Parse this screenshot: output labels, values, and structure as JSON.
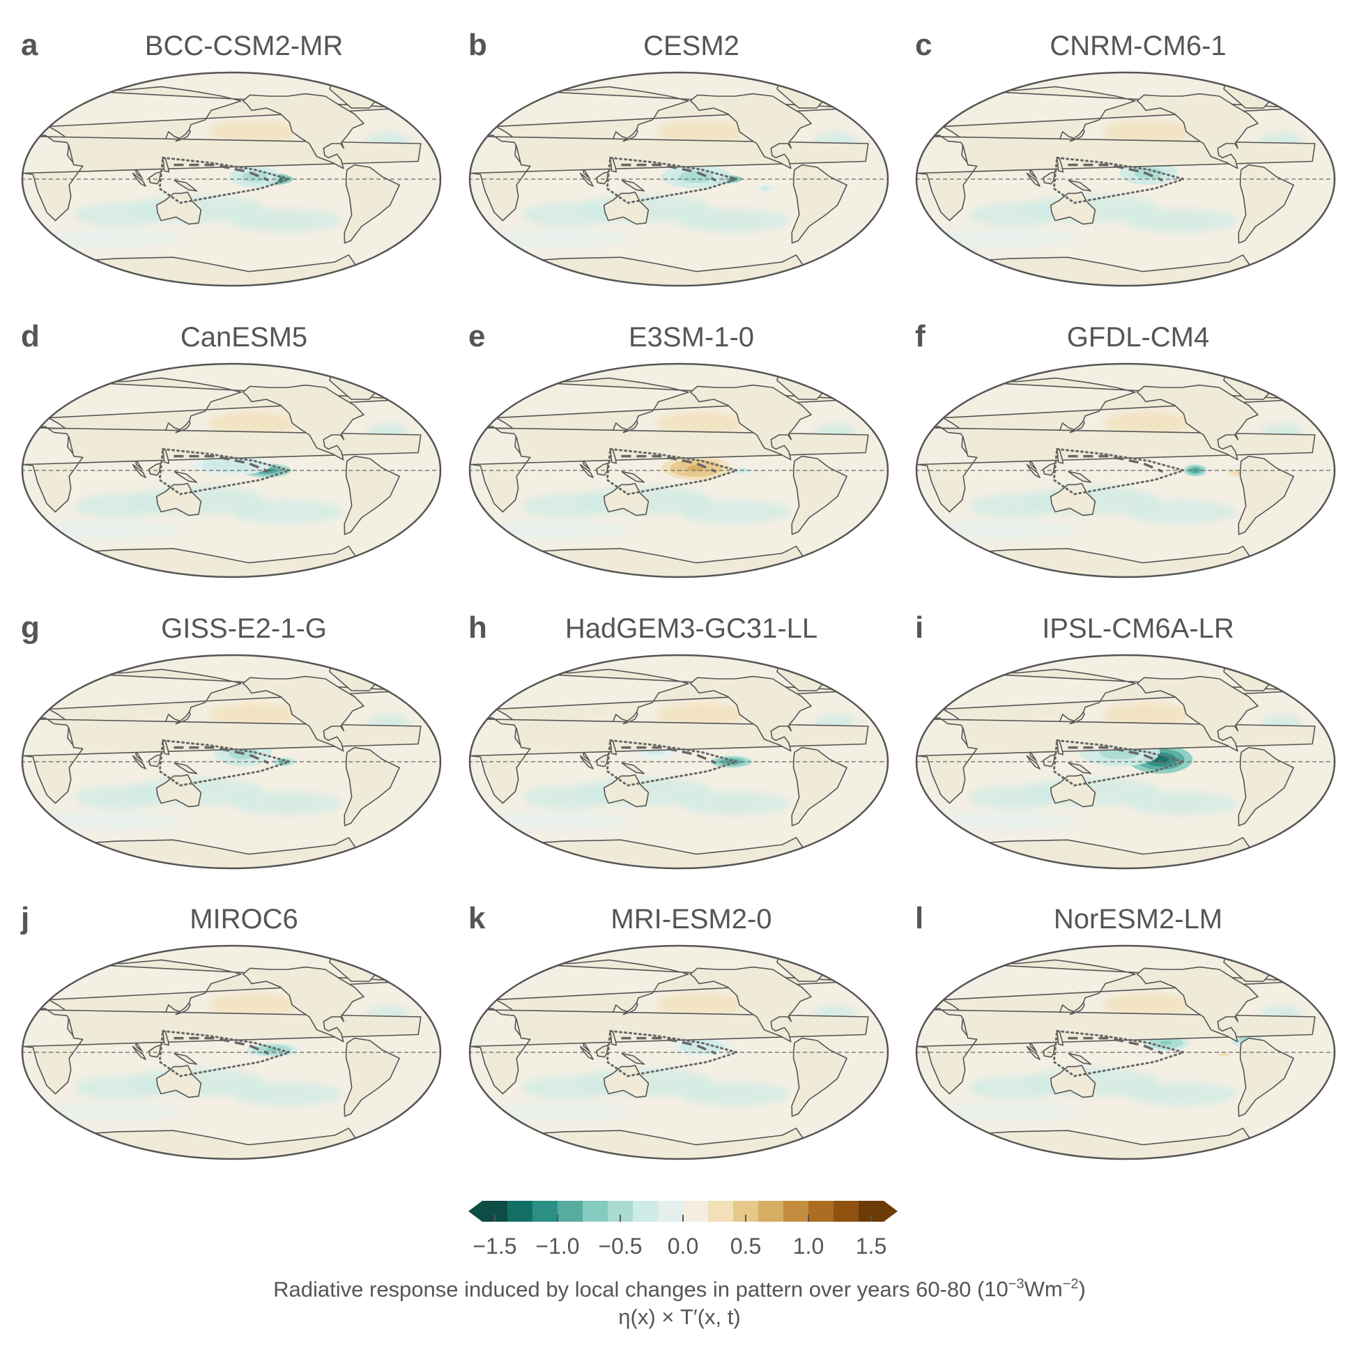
{
  "panels": [
    {
      "letter": "a",
      "title": "BCC-CSM2-MR",
      "anomaly": [
        {
          "lon": 215,
          "lat": 0,
          "v": -1.5,
          "rx": 18,
          "ry": 5
        },
        {
          "lon": 200,
          "lat": 2,
          "v": -0.6,
          "rx": 22,
          "ry": 9
        }
      ],
      "field": "weak"
    },
    {
      "letter": "b",
      "title": "CESM2",
      "anomaly": [
        {
          "lon": 215,
          "lat": 0,
          "v": -1.6,
          "rx": 20,
          "ry": 4
        },
        {
          "lon": 195,
          "lat": 2,
          "v": -0.5,
          "rx": 30,
          "ry": 10
        },
        {
          "lon": 255,
          "lat": -8,
          "v": -0.3,
          "rx": 8,
          "ry": 4
        }
      ],
      "field": "weak"
    },
    {
      "letter": "c",
      "title": "CNRM-CM6-1",
      "anomaly": [
        {
          "lon": 200,
          "lat": 5,
          "v": -0.5,
          "rx": 25,
          "ry": 10
        }
      ],
      "field": "weak"
    },
    {
      "letter": "d",
      "title": "CanESM5",
      "anomaly": [
        {
          "lon": 210,
          "lat": 0,
          "v": -1.2,
          "rx": 22,
          "ry": 6
        },
        {
          "lon": 180,
          "lat": 5,
          "v": -0.4,
          "rx": 35,
          "ry": 9
        }
      ],
      "field": "weak"
    },
    {
      "letter": "e",
      "title": "E3SM-1-0",
      "anomaly": [
        {
          "lon": 195,
          "lat": 2,
          "v": 0.7,
          "rx": 30,
          "ry": 10
        },
        {
          "lon": 235,
          "lat": 0,
          "v": -0.4,
          "rx": 8,
          "ry": 3
        }
      ],
      "field": "weak"
    },
    {
      "letter": "f",
      "title": "GFDL-CM4",
      "anomaly": [
        {
          "lon": 240,
          "lat": 0,
          "v": -1.0,
          "rx": 10,
          "ry": 5
        },
        {
          "lon": 280,
          "lat": -2,
          "v": 0.4,
          "rx": 16,
          "ry": 4
        }
      ],
      "field": "weak"
    },
    {
      "letter": "g",
      "title": "GISS-E2-1-G",
      "anomaly": [
        {
          "lon": 190,
          "lat": 8,
          "v": -0.6,
          "rx": 25,
          "ry": 12
        },
        {
          "lon": 225,
          "lat": 0,
          "v": -0.8,
          "rx": 10,
          "ry": 4
        }
      ],
      "field": "weak"
    },
    {
      "letter": "h",
      "title": "HadGEM3-GC31-LL",
      "anomaly": [
        {
          "lon": 225,
          "lat": 0,
          "v": -1.0,
          "rx": 18,
          "ry": 5
        },
        {
          "lon": 160,
          "lat": 10,
          "v": -0.3,
          "rx": 20,
          "ry": 8
        }
      ],
      "field": "weak"
    },
    {
      "letter": "i",
      "title": "IPSL-CM6A-LR",
      "anomaly": [
        {
          "lon": 210,
          "lat": 2,
          "v": -1.3,
          "rx": 28,
          "ry": 12
        },
        {
          "lon": 175,
          "lat": 8,
          "v": -0.5,
          "rx": 35,
          "ry": 12
        }
      ],
      "field": "weak"
    },
    {
      "letter": "j",
      "title": "MIROC6",
      "anomaly": [
        {
          "lon": 215,
          "lat": 2,
          "v": -0.7,
          "rx": 22,
          "ry": 6
        }
      ],
      "field": "weak"
    },
    {
      "letter": "k",
      "title": "MRI-ESM2-0",
      "anomaly": [
        {
          "lon": 200,
          "lat": 5,
          "v": -0.4,
          "rx": 25,
          "ry": 8
        }
      ],
      "field": "weak"
    },
    {
      "letter": "l",
      "title": "NorESM2-LM",
      "anomaly": [
        {
          "lon": 215,
          "lat": 8,
          "v": -0.7,
          "rx": 20,
          "ry": 7
        },
        {
          "lon": 285,
          "lat": 10,
          "v": -0.5,
          "rx": 14,
          "ry": 6
        },
        {
          "lon": 265,
          "lat": -2,
          "v": 0.3,
          "rx": 10,
          "ry": 3
        }
      ],
      "field": "weak"
    }
  ],
  "colorbar": {
    "colors": [
      "#0d4d45",
      "#136f66",
      "#2b8f85",
      "#57aba0",
      "#85cbbf",
      "#aadcd3",
      "#cfebe5",
      "#e5f0ee",
      "#f5eee0",
      "#f1e0b8",
      "#e6c88a",
      "#d7ad64",
      "#c58d3f",
      "#ac6c22",
      "#8f5110",
      "#6d3b08"
    ],
    "ticks": [
      "−1.5",
      "−1.0",
      "−0.5",
      "0.0",
      "0.5",
      "1.0",
      "1.5"
    ],
    "vmin": -1.6,
    "vmax": 1.6
  },
  "caption": {
    "line1": "Radiative response induced by local changes in pattern over years 60-80",
    "unit_open": "(10",
    "unit_exp1": "−3",
    "unit_mid": "Wm",
    "unit_exp2": "−2",
    "unit_close": ")",
    "line2": "η(x) × T′(x, t)"
  }
}
